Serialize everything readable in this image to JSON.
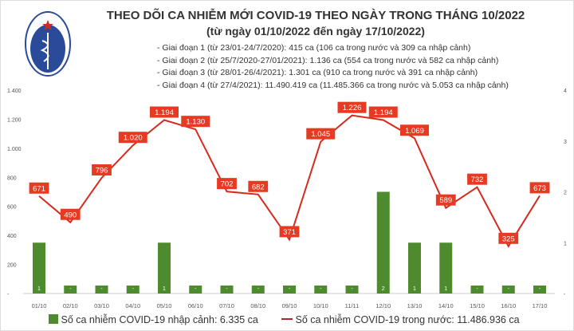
{
  "logo_text": "BỘ Y TẾ · MINISTRY OF HEALTH",
  "title": "THEO DÕI CA NHIỄM MỚI COVID-19 THEO NGÀY TRONG THÁNG 10/2022",
  "subtitle": "(từ ngày 01/10/2022 đến ngày 17/10/2022)",
  "notes": [
    "- Giai đoạn 1 (từ 23/01-24/7/2020): 415 ca (106 ca trong nước và 309 ca nhập cảnh)",
    "- Giai đoạn 2 (từ 25/7/2020-27/01/2021): 1.136 ca (554 ca trong nước và 582 ca nhập cảnh)",
    "- Giai đoạn 3 (từ 28/01-26/4/2021): 1.301 ca (910 ca trong nước và 391 ca nhập cảnh)",
    "- Giai đoạn 4 (từ 27/4/2021): 11.490.419 ca (11.485.366 ca trong nước và 5.053 ca nhập cảnh)"
  ],
  "chart_data": {
    "type": "bar+line",
    "categories": [
      "01/10",
      "02/10",
      "03/10",
      "04/10",
      "05/10",
      "06/10",
      "07/10",
      "08/10",
      "09/10",
      "10/10",
      "11/11",
      "12/10",
      "13/10",
      "14/10",
      "15/10",
      "16/10",
      "17/10"
    ],
    "series": [
      {
        "name": "Số ca nhiễm COVID-19 nhập cảnh: 6.335 ca",
        "type": "bar",
        "axis": "right",
        "color": "#4e8a2e",
        "values": [
          1,
          0,
          0,
          0,
          1,
          0,
          0,
          0,
          0,
          0,
          0,
          2,
          1,
          1,
          0,
          0,
          0
        ]
      },
      {
        "name": "Số ca nhiễm COVID-19 trong nước: 11.486.936 ca",
        "type": "line",
        "axis": "left",
        "color": "#d62a1e",
        "values": [
          671,
          490,
          796,
          1020,
          1194,
          1130,
          702,
          682,
          371,
          1045,
          1226,
          1194,
          1069,
          589,
          732,
          325,
          673
        ]
      }
    ],
    "left_axis": {
      "ylim": [
        0,
        1400
      ],
      "ticks": [
        "-",
        "200",
        "400",
        "600",
        "800",
        "1.000",
        "1.200",
        "1.400"
      ]
    },
    "right_axis": {
      "ylim": [
        0,
        4
      ],
      "ticks": [
        "-",
        "1",
        "2",
        "3",
        "4"
      ]
    },
    "line_labels": [
      "671",
      "490",
      "796",
      "1.020",
      "1.194",
      "1.130",
      "702",
      "682",
      "371",
      "1.045",
      "1.226",
      "1.194",
      "1.069",
      "589",
      "732",
      "325",
      "673"
    ],
    "bar_labels": [
      "1",
      "-",
      "-",
      "-",
      "1",
      "-",
      "-",
      "-",
      "-",
      "-",
      "-",
      "2",
      "1",
      "1",
      "-",
      "-",
      "-"
    ],
    "legend": "bottom"
  }
}
